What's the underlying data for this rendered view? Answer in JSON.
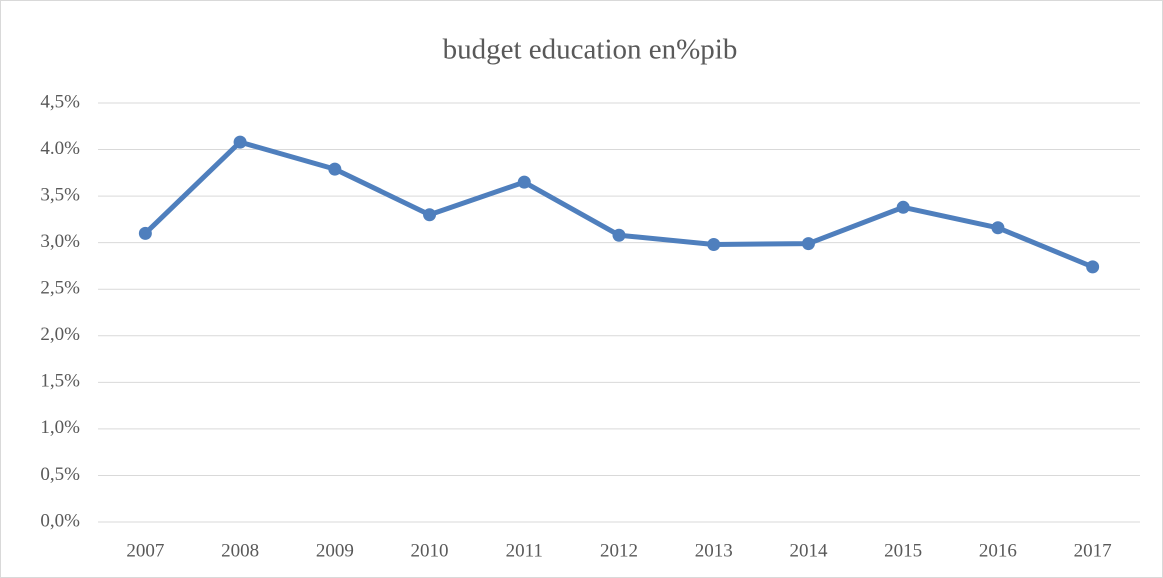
{
  "chart_data": {
    "type": "line",
    "title": "budget education en%pib",
    "categories": [
      "2007",
      "2008",
      "2009",
      "2010",
      "2011",
      "2012",
      "2013",
      "2014",
      "2015",
      "2016",
      "2017"
    ],
    "series": [
      {
        "name": "budget education en%pib",
        "color": "#4f7fbd",
        "values": [
          3.1,
          4.08,
          3.79,
          3.3,
          3.65,
          3.08,
          2.98,
          2.99,
          3.38,
          3.16,
          2.74
        ]
      }
    ],
    "ylim": [
      0,
      4.5
    ],
    "yticks": [
      {
        "value": 0,
        "label": "0,0%"
      },
      {
        "value": 0.5,
        "label": "0,5%"
      },
      {
        "value": 1,
        "label": "1,0%"
      },
      {
        "value": 1.5,
        "label": "1,5%"
      },
      {
        "value": 2,
        "label": "2,0%"
      },
      {
        "value": 2.5,
        "label": "2,5%"
      },
      {
        "value": 3,
        "label": "3,0%"
      },
      {
        "value": 3.5,
        "label": "3,5%"
      },
      {
        "value": 4,
        "label": "4.0%"
      },
      {
        "value": 4.5,
        "label": "4,5%"
      }
    ],
    "grid": true
  }
}
